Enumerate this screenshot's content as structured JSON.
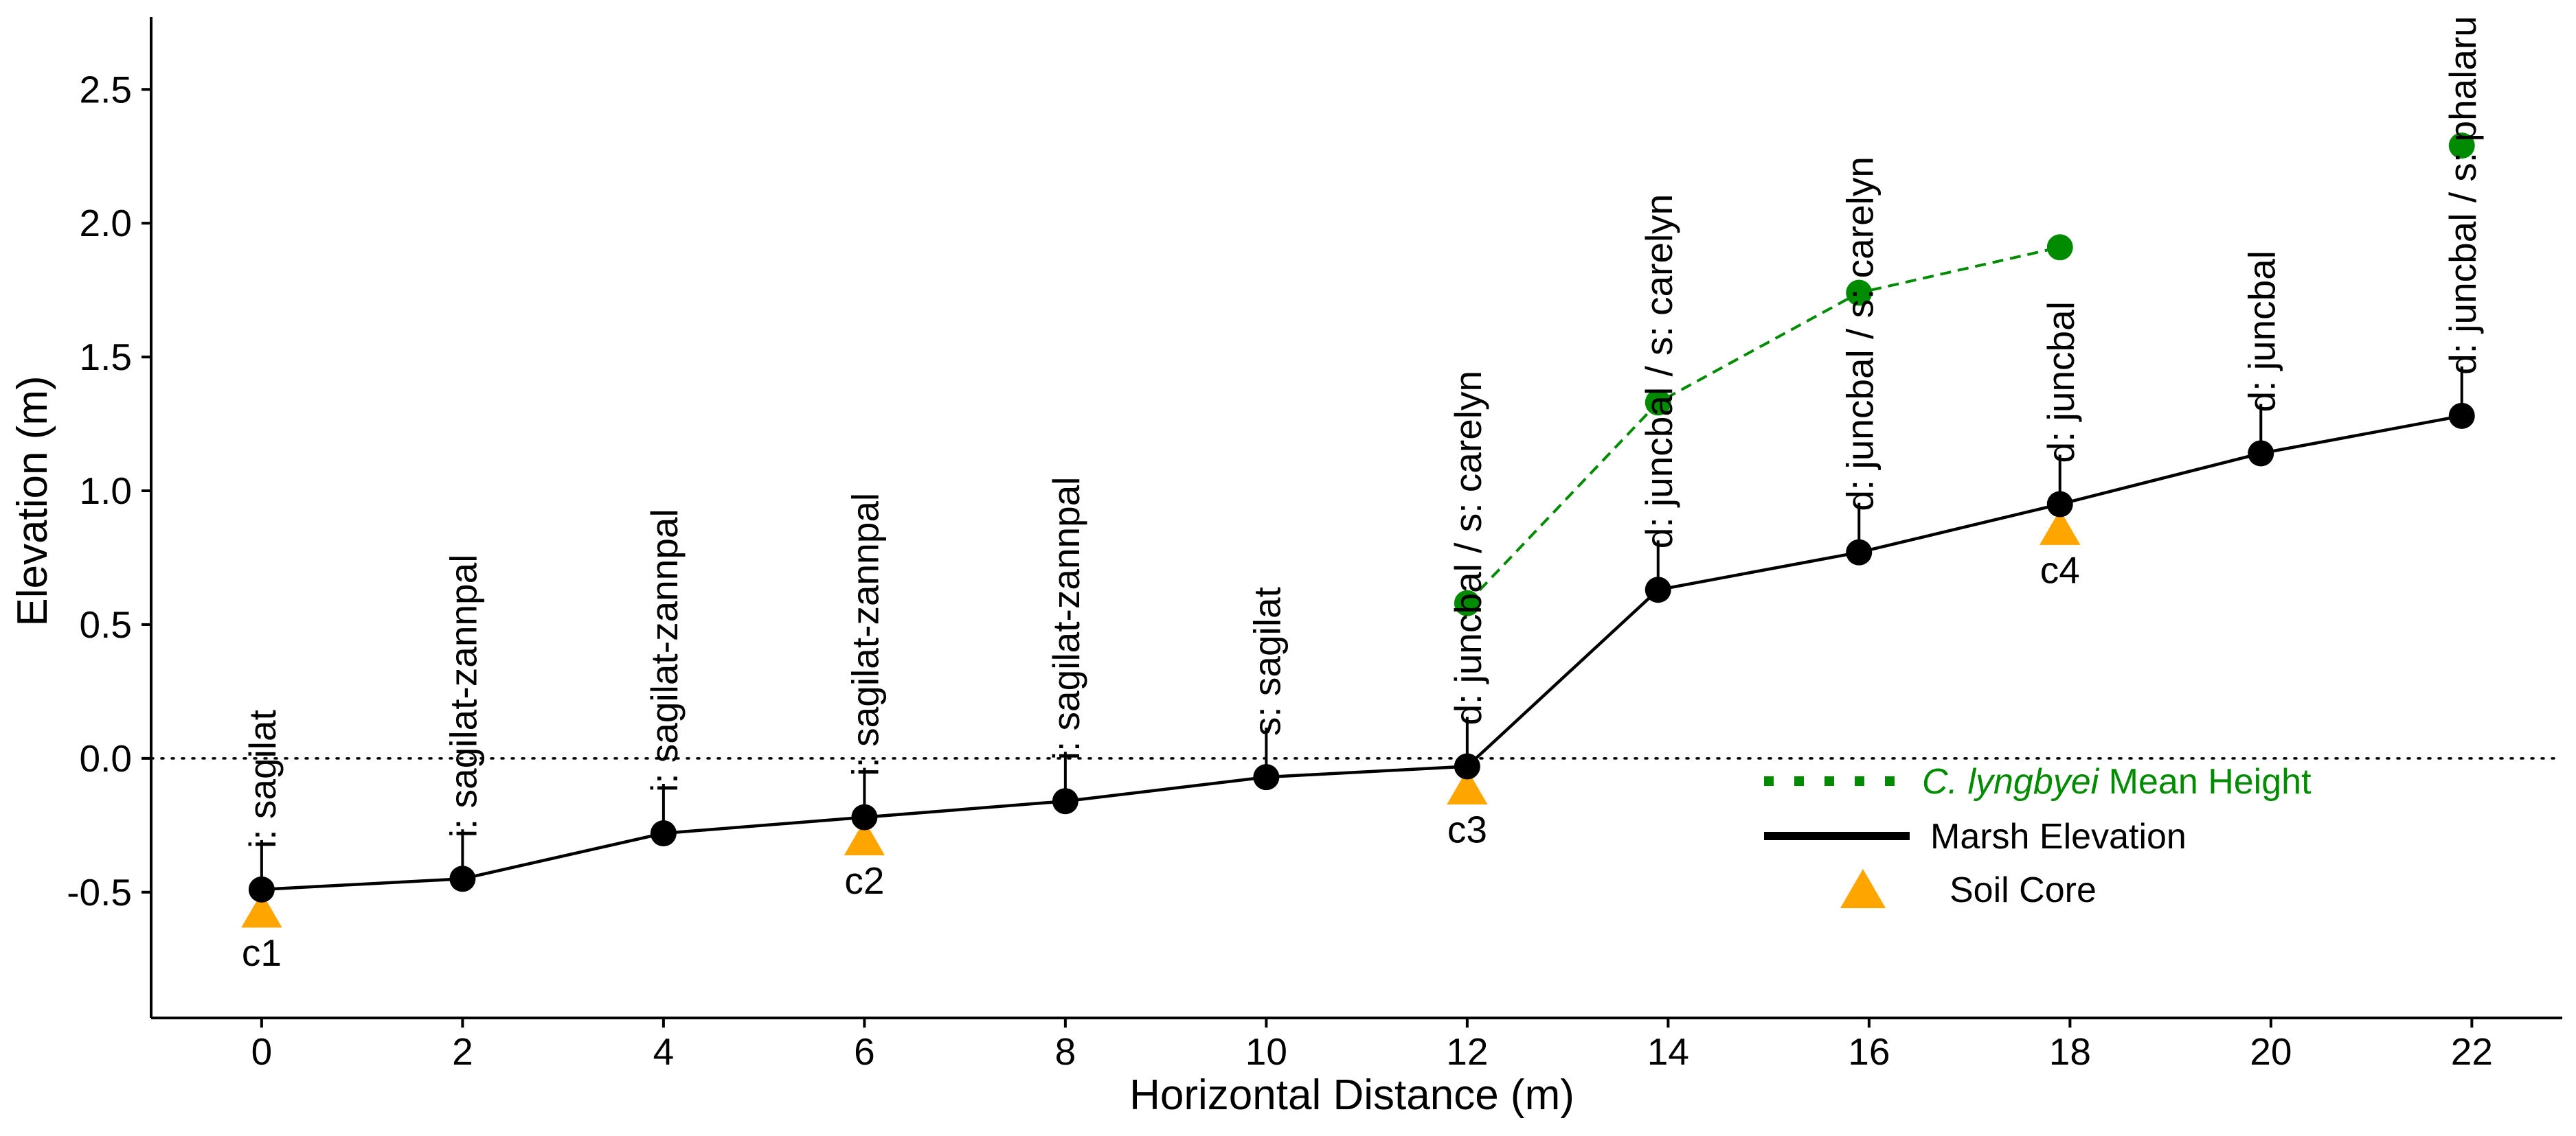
{
  "chart_data": {
    "type": "line",
    "xlabel": "Horizontal Distance (m)",
    "ylabel": "Elevation (m)",
    "xlim": [
      -1.1,
      22.9
    ],
    "ylim": [
      -0.97,
      2.77
    ],
    "x_ticks": [
      0,
      2,
      4,
      6,
      8,
      10,
      12,
      14,
      16,
      18,
      20,
      22
    ],
    "y_ticks": [
      -0.5,
      0.0,
      0.5,
      1.0,
      1.5,
      2.0,
      2.5
    ],
    "y_tick_labels": [
      "-0.5",
      "0.0",
      "0.5",
      "1.0",
      "1.5",
      "2.0",
      "2.5"
    ],
    "reference_line": {
      "y": 0,
      "style": "dotted"
    },
    "marsh_elevation": {
      "name": "Marsh Elevation",
      "color": "#000000",
      "x": [
        0,
        2,
        4,
        6,
        8,
        10,
        12,
        13.9,
        15.9,
        17.9,
        19.9,
        21.9
      ],
      "y": [
        -0.49,
        -0.45,
        -0.28,
        -0.22,
        -0.16,
        -0.07,
        -0.03,
        0.63,
        0.77,
        0.95,
        1.14,
        1.28
      ],
      "labels": [
        "i: sagilat",
        "i: sagilat-zannpal",
        "i: sagilat-zannpal",
        "i: sagilat-zannpal",
        "i: sagilat-zannpal",
        "s: sagilat",
        "d: juncbal / s: carelyn",
        "d: juncbal / s: carelyn",
        "d: juncbal / s: carelyn",
        "d: juncbal",
        "d: juncbal",
        "d: juncbal / s: phalaru"
      ]
    },
    "lyngbyei_height": {
      "name_italic": "C. lyngbyei",
      "name_rest": " Mean Height",
      "color": "#008B00",
      "x": [
        12,
        13.9,
        15.9,
        17.9
      ],
      "y": [
        0.58,
        1.33,
        1.74,
        1.91
      ],
      "extra_points": [
        {
          "x": 21.9,
          "y": 2.29
        }
      ]
    },
    "soil_cores": {
      "name": "Soil Core",
      "color": "#FFA500",
      "points": [
        {
          "x": 0,
          "y": -0.57,
          "label": "c1"
        },
        {
          "x": 6,
          "y": -0.3,
          "label": "c2"
        },
        {
          "x": 12,
          "y": -0.11,
          "label": "c3"
        },
        {
          "x": 17.9,
          "y": 0.86,
          "label": "c4"
        }
      ]
    },
    "legend": {
      "placement": "bottom-right",
      "items": [
        "lyngbyei_height",
        "marsh_elevation",
        "soil_cores"
      ]
    }
  }
}
